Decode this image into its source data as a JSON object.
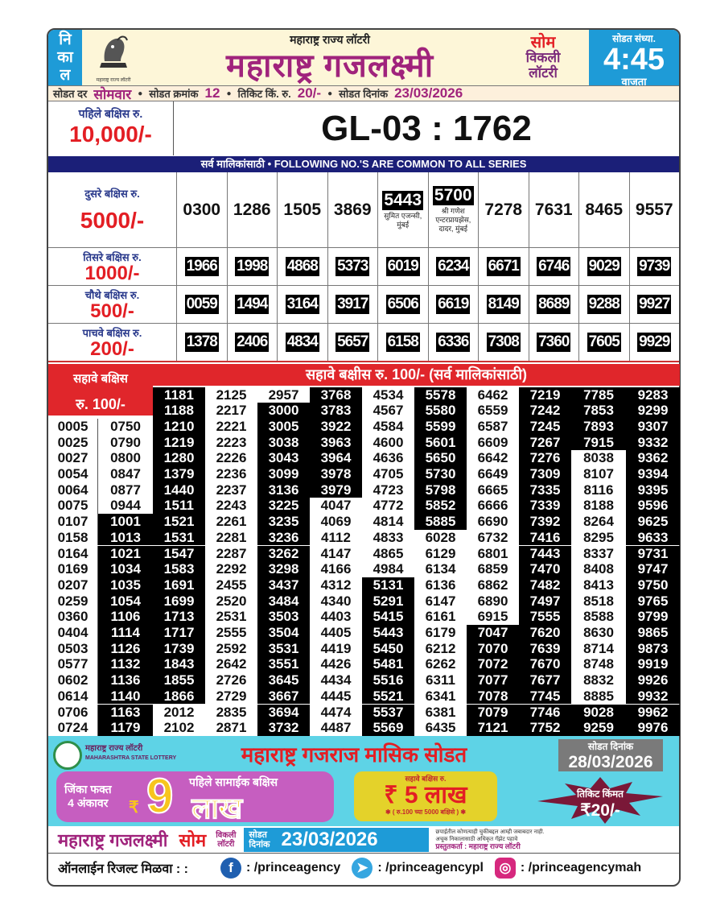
{
  "header": {
    "nikal": [
      "नि",
      "का",
      "ल"
    ],
    "logo_caption": "महाराष्ट्र राज्य लॉटरी",
    "subtitle": "महाराष्ट्र राज्य लॉटरी",
    "title": "महाराष्ट्र गजलक्ष्मी",
    "day": "सोम",
    "weekly_1": "विकली",
    "weekly_2": "लॉटरी",
    "time_label": "सोडत संध्या.",
    "time": "4:45",
    "time_suffix": "वाजता"
  },
  "info": {
    "day_label": "सोडत दर",
    "day": "सोमवार",
    "draw_no_label": "सोडत क्रमांक",
    "draw_no": "12",
    "price_label": "तिकिट किं. रु.",
    "price": "20/-",
    "date_label": "सोडत दिनांक",
    "date": "23/03/2026"
  },
  "first_prize": {
    "label": "पहिले बक्षिस रु.",
    "amount": "10,000/-",
    "winner": "GL-03 : 1762"
  },
  "common_banner": "सर्व मालिकांसाठी  •  FOLLOWING NO.'S ARE COMMON TO ALL SERIES",
  "second_prize": {
    "label": "दुसरे बक्षिस रु.",
    "amount": "5000/-",
    "numbers": [
      {
        "n": "0300"
      },
      {
        "n": "1286"
      },
      {
        "n": "1505"
      },
      {
        "n": "3869"
      },
      {
        "n": "5443",
        "note": "सुमित एजन्सी, मुंबई"
      },
      {
        "n": "5700",
        "note": "श्री गणेश एन्टरप्रायझेस, दादर, मुंबई"
      },
      {
        "n": "7278"
      },
      {
        "n": "7631"
      },
      {
        "n": "8465"
      },
      {
        "n": "9557"
      }
    ]
  },
  "third_prize": {
    "label": "तिसरे बक्षिस रु.",
    "amount": "1000/-",
    "numbers": [
      "1966",
      "1998",
      "4868",
      "5373",
      "6019",
      "6234",
      "6671",
      "6746",
      "9029",
      "9739"
    ]
  },
  "fourth_prize": {
    "label": "चौथे बक्षिस रु.",
    "amount": "500/-",
    "numbers": [
      "0059",
      "1494",
      "3164",
      "3917",
      "6506",
      "6619",
      "8149",
      "8689",
      "9288",
      "9927"
    ]
  },
  "fifth_prize": {
    "label": "पाचवे बक्षिस रु.",
    "amount": "200/-",
    "numbers": [
      "1378",
      "2406",
      "4834",
      "5657",
      "6158",
      "6336",
      "7308",
      "7360",
      "7605",
      "9929"
    ]
  },
  "sixth_prize": {
    "side_label": "सहावे बक्षिस",
    "side_amount": "रु. 100/-",
    "banner": "सहावे बक्षीस रु. 100/-   (सर्व मालिकांसाठी)",
    "columns": [
      [
        "0005",
        "0025",
        "0027",
        "0054",
        "0064",
        "0075",
        "0107",
        "0158",
        "0164",
        "0169",
        "0207",
        "0259",
        "0360",
        "0404",
        "0503",
        "0577",
        "0602",
        "0614",
        "0706",
        "0724"
      ],
      [
        "0750",
        "0790",
        "0800",
        "0847",
        "0877",
        "0944",
        "1001",
        "1013",
        "1021",
        "1034",
        "1035",
        "1054",
        "1106",
        "1114",
        "1126",
        "1132",
        "1136",
        "1140",
        "1163",
        "1179"
      ],
      [
        "1181",
        "1188",
        "1210",
        "1219",
        "1280",
        "1379",
        "1440",
        "1511",
        "1521",
        "1531",
        "1547",
        "1583",
        "1691",
        "1699",
        "1713",
        "1717",
        "1739",
        "1843",
        "1855",
        "1866",
        "2012",
        "2102"
      ],
      [
        "2125",
        "2217",
        "2221",
        "2223",
        "2226",
        "2236",
        "2237",
        "2243",
        "2261",
        "2281",
        "2287",
        "2292",
        "2455",
        "2520",
        "2531",
        "2555",
        "2592",
        "2642",
        "2726",
        "2729",
        "2835",
        "2871"
      ],
      [
        "2957",
        "3000",
        "3005",
        "3038",
        "3043",
        "3099",
        "3136",
        "3225",
        "3235",
        "3236",
        "3262",
        "3298",
        "3437",
        "3484",
        "3503",
        "3504",
        "3531",
        "3551",
        "3645",
        "3667",
        "3694",
        "3732"
      ],
      [
        "3768",
        "3783",
        "3922",
        "3963",
        "3964",
        "3978",
        "3979",
        "4047",
        "4069",
        "4112",
        "4147",
        "4166",
        "4312",
        "4340",
        "4403",
        "4405",
        "4419",
        "4426",
        "4434",
        "4445",
        "4474",
        "4487"
      ],
      [
        "4534",
        "4567",
        "4584",
        "4600",
        "4636",
        "4705",
        "4723",
        "4772",
        "4814",
        "4833",
        "4865",
        "4984",
        "5131",
        "5291",
        "5415",
        "5443",
        "5450",
        "5481",
        "5516",
        "5521",
        "5537",
        "5569"
      ],
      [
        "5578",
        "5580",
        "5599",
        "5601",
        "5650",
        "5730",
        "5798",
        "5852",
        "5885",
        "6028",
        "6129",
        "6134",
        "6136",
        "6147",
        "6161",
        "6179",
        "6212",
        "6262",
        "6311",
        "6341",
        "6381",
        "6435"
      ],
      [
        "6462",
        "6559",
        "6587",
        "6609",
        "6642",
        "6649",
        "6665",
        "6666",
        "6690",
        "6732",
        "6801",
        "6859",
        "6862",
        "6890",
        "6915",
        "7047",
        "7070",
        "7072",
        "7077",
        "7078",
        "7079",
        "7121"
      ],
      [
        "7219",
        "7242",
        "7245",
        "7267",
        "7276",
        "7309",
        "7335",
        "7339",
        "7392",
        "7416",
        "7443",
        "7470",
        "7482",
        "7497",
        "7555",
        "7620",
        "7639",
        "7670",
        "7677",
        "7745",
        "7746",
        "7752"
      ],
      [
        "7785",
        "7853",
        "7893",
        "7915",
        "8038",
        "8107",
        "8116",
        "8188",
        "8264",
        "8295",
        "8337",
        "8408",
        "8413",
        "8518",
        "8588",
        "8630",
        "8714",
        "8748",
        "8832",
        "8885",
        "9028",
        "9259"
      ],
      [
        "9283",
        "9299",
        "9307",
        "9332",
        "9362",
        "9394",
        "9395",
        "9596",
        "9625",
        "9633",
        "9731",
        "9747",
        "9750",
        "9765",
        "9799",
        "9865",
        "9873",
        "9919",
        "9926",
        "9932",
        "9962",
        "9976"
      ]
    ]
  },
  "promo": {
    "logo_text_1": "महाराष्ट्र राज्य लॉटरी",
    "logo_text_2": "MAHARASHTRA STATE LOTTERY",
    "title": "महाराष्ट्र गजराज मासिक सोडत",
    "date_label": "सोडत दिनांक",
    "date": "28/03/2026",
    "win_label_1": "जिंका फक्त",
    "win_label_2": "4 अंकावर",
    "rupee": "₹",
    "first_label": "पहिले सामाईक बक्षिस",
    "first_amount": "9",
    "first_unit": "लाख",
    "sixth_label": "सहावे बक्षिस रु.",
    "sixth_amount": "₹ 5 लाख",
    "sixth_note": "✱ ( रु.100 च्या 5000 बक्षिसे ) ✱",
    "ticket_label": "तिकिट किंमत",
    "ticket_price": "₹20/-"
  },
  "footer": {
    "title": "महाराष्ट्र गजलक्ष्मी",
    "day": "सोम",
    "weekly_1": "विकली",
    "weekly_2": "लॉटरी",
    "date_label_1": "सोडत",
    "date_label_2": "दिनांक",
    "date": "23/03/2026",
    "disclaimer_1": "छपाईतील कोणत्याही चुकीबद्दल आम्ही जबाबदार नाही.",
    "disclaimer_2": "अचूक निकालासाठी अधिकृत गॅझेट पहावे",
    "presenter": "प्रस्तुतकर्ता : महाराष्ट्र राज्य लॉटरी",
    "online_label": "ऑनलाईन रिजल्ट मिळवा : :",
    "facebook": ": /princeagency",
    "telegram": ": /princeagencypl",
    "instagram": ": /princeagencymah"
  },
  "colors": {
    "brand_purple": "#a0237c",
    "accent_red": "#e31e24",
    "header_blue": "#1e9bd7",
    "banner_navy": "#1b1f78",
    "promo_cyan": "#5ed3e6"
  }
}
